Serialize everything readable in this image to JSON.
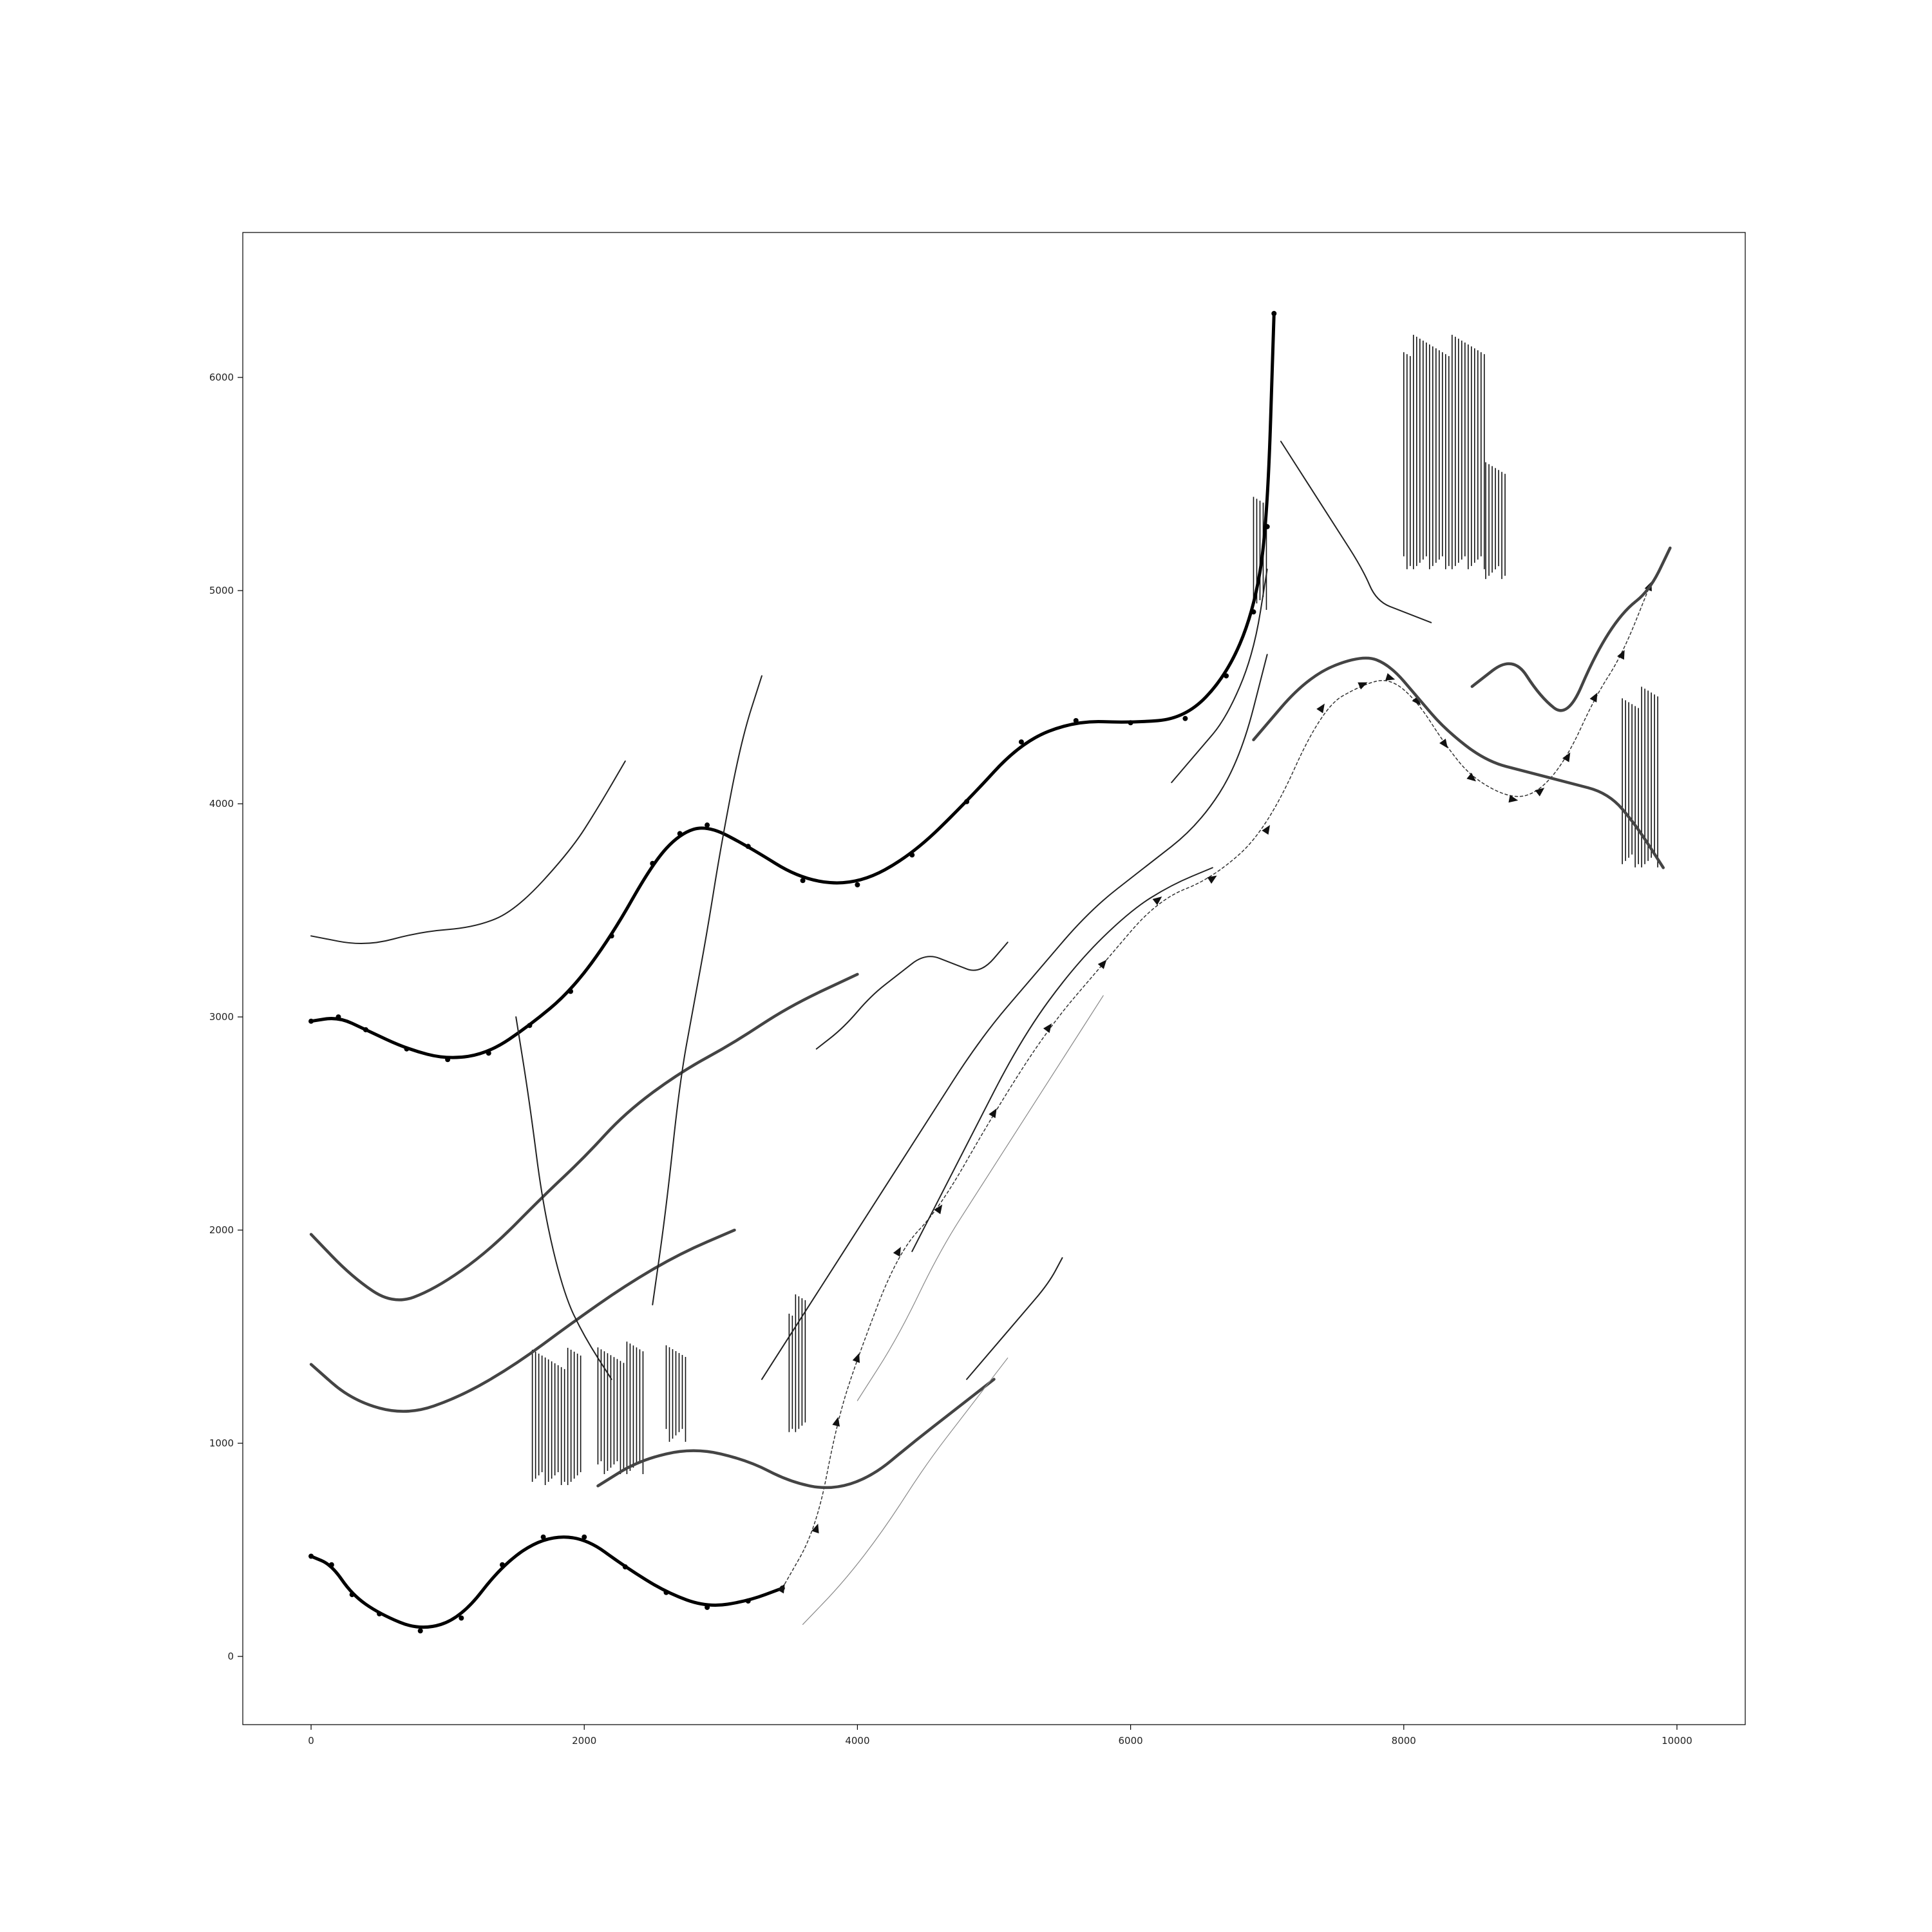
{
  "chart_data": {
    "type": "line",
    "title": "",
    "xlabel": "",
    "ylabel": "",
    "xlim": [
      -500,
      10500
    ],
    "ylim": [
      -320,
      6680
    ],
    "xticks": [
      0,
      2000,
      4000,
      6000,
      8000,
      10000
    ],
    "yticks": [
      0,
      1000,
      2000,
      3000,
      4000,
      5000,
      6000
    ],
    "xtick_labels": [
      "0",
      "2000",
      "4000",
      "6000",
      "8000",
      "10000"
    ],
    "ytick_labels": [
      "0",
      "1000",
      "2000",
      "3000",
      "4000",
      "5000",
      "6000"
    ],
    "grid": false,
    "legend": "none",
    "color": "#000000",
    "series": [
      {
        "style": "thick-dark",
        "x": [
          0,
          200,
          400,
          700,
          1000,
          1300,
          1600,
          1900,
          2200,
          2500,
          2700,
          2900,
          3200,
          3600,
          4000,
          4400,
          4800,
          5200,
          5600,
          6000,
          6400,
          6700,
          6900,
          7000,
          7050
        ],
        "y": [
          2980,
          3000,
          2940,
          2850,
          2800,
          2830,
          2960,
          3120,
          3380,
          3720,
          3860,
          3900,
          3800,
          3640,
          3620,
          3760,
          4010,
          4290,
          4390,
          4380,
          4400,
          4600,
          4900,
          5300,
          6300
        ]
      },
      {
        "style": "thick-dark",
        "x": [
          0,
          150,
          300,
          500,
          800,
          1100,
          1400,
          1700,
          2000,
          2300,
          2600,
          2900,
          3200,
          3450
        ],
        "y": [
          470,
          430,
          290,
          200,
          120,
          180,
          430,
          560,
          560,
          420,
          300,
          230,
          260,
          320
        ]
      },
      {
        "style": "triangle-markers",
        "x": [
          3450,
          3700,
          3850,
          4000,
          4300,
          4600,
          5000,
          5400,
          5800,
          6200,
          6600,
          7000,
          7400,
          7700,
          7900,
          8100,
          8300,
          8500,
          8800,
          9000,
          9200,
          9400,
          9600,
          9800
        ],
        "y": [
          320,
          600,
          1100,
          1400,
          1900,
          2100,
          2550,
          2950,
          3250,
          3550,
          3650,
          3880,
          4450,
          4560,
          4590,
          4480,
          4280,
          4120,
          4020,
          4060,
          4220,
          4500,
          4700,
          5020
        ]
      },
      {
        "style": "medium",
        "x": [
          0,
          400,
          800,
          1200,
          1500,
          1900,
          2100,
          2300
        ],
        "y": [
          3380,
          3330,
          3400,
          3420,
          3500,
          3780,
          3980,
          4200
        ]
      },
      {
        "style": "thick-gray",
        "x": [
          0,
          300,
          600,
          900,
          1300,
          1700,
          2000,
          2300,
          2700,
          3100,
          3500,
          4000
        ],
        "y": [
          1980,
          1780,
          1650,
          1720,
          1900,
          2160,
          2340,
          2550,
          2740,
          2880,
          3050,
          3200
        ]
      },
      {
        "style": "thick-gray",
        "x": [
          0,
          300,
          700,
          1100,
          1500,
          1900,
          2300,
          2700,
          3100
        ],
        "y": [
          1370,
          1200,
          1130,
          1220,
          1370,
          1560,
          1740,
          1890,
          2000
        ]
      },
      {
        "style": "thick-gray",
        "x": [
          2100,
          2400,
          2800,
          3200,
          3500,
          3800,
          4100,
          4400,
          4700,
          5000
        ],
        "y": [
          800,
          920,
          980,
          920,
          820,
          780,
          840,
          1000,
          1150,
          1300
        ]
      },
      {
        "style": "medium",
        "x": [
          3300,
          3700,
          4100,
          4500,
          4900,
          5300,
          5700,
          6100,
          6500,
          6800,
          7000
        ],
        "y": [
          1300,
          1700,
          2100,
          2500,
          2900,
          3200,
          3500,
          3700,
          3900,
          4200,
          4700
        ]
      },
      {
        "style": "medium",
        "x": [
          4400,
          4800,
          5200,
          5600,
          6000,
          6300,
          6600
        ],
        "y": [
          1900,
          2400,
          2900,
          3250,
          3500,
          3620,
          3700
        ]
      },
      {
        "style": "thick-gray",
        "x": [
          6900,
          7300,
          7700,
          7900,
          8100,
          8300,
          8600,
          8900,
          9200,
          9500,
          9700,
          9900
        ],
        "y": [
          4300,
          4600,
          4700,
          4650,
          4500,
          4350,
          4200,
          4150,
          4100,
          4050,
          3900,
          3700
        ]
      },
      {
        "style": "thick-gray",
        "x": [
          8500,
          8800,
          9000,
          9200,
          9400,
          9600,
          9800,
          9950
        ],
        "y": [
          4550,
          4700,
          4500,
          4400,
          4700,
          4900,
          5000,
          5200
        ]
      },
      {
        "style": "medium",
        "x": [
          7100,
          7300,
          7500,
          7700,
          7800,
          8000,
          8200
        ],
        "y": [
          5700,
          5500,
          5300,
          5100,
          4950,
          4900,
          4850
        ]
      },
      {
        "style": "medium",
        "x": [
          2500,
          2600,
          2700,
          2800,
          2900,
          3000,
          3150,
          3300
        ],
        "y": [
          1650,
          2100,
          2700,
          3050,
          3400,
          3800,
          4300,
          4600
        ]
      },
      {
        "style": "medium",
        "x": [
          1500,
          1600,
          1700,
          1850,
          2000,
          2200
        ],
        "y": [
          3000,
          2600,
          2100,
          1700,
          1500,
          1300
        ]
      },
      {
        "style": "medium",
        "x": [
          4800,
          5000,
          5200,
          5400,
          5500
        ],
        "y": [
          1300,
          1450,
          1600,
          1750,
          1870
        ]
      },
      {
        "style": "thin-gray",
        "x": [
          3600,
          3900,
          4200,
          4500,
          4800,
          5100
        ],
        "y": [
          150,
          350,
          600,
          900,
          1150,
          1400
        ]
      },
      {
        "style": "thin-gray",
        "x": [
          4000,
          4300,
          4600,
          4900,
          5200,
          5500,
          5800
        ],
        "y": [
          1200,
          1500,
          1900,
          2200,
          2500,
          2800,
          3100
        ]
      },
      {
        "style": "medium",
        "x": [
          6300,
          6500,
          6700,
          6900,
          7000
        ],
        "y": [
          4100,
          4250,
          4400,
          4700,
          5100
        ]
      },
      {
        "style": "medium",
        "x": [
          3700,
          3900,
          4100,
          4300,
          4500,
          4700,
          4900,
          5100
        ],
        "y": [
          2850,
          2950,
          3100,
          3200,
          3300,
          3250,
          3200,
          3350
        ]
      }
    ],
    "hatched_blocks": [
      {
        "x": [
          1620,
          1980
        ],
        "y": [
          800,
          1450
        ]
      },
      {
        "x": [
          2100,
          2450
        ],
        "y": [
          850,
          1480
        ]
      },
      {
        "x": [
          2600,
          2760
        ],
        "y": [
          1000,
          1500
        ]
      },
      {
        "x": [
          3500,
          3640
        ],
        "y": [
          1050,
          1700
        ]
      },
      {
        "x": [
          8000,
          8600
        ],
        "y": [
          5100,
          6200
        ]
      },
      {
        "x": [
          8600,
          8760
        ],
        "y": [
          5050,
          5650
        ]
      },
      {
        "x": [
          9600,
          9860
        ],
        "y": [
          3700,
          4550
        ]
      },
      {
        "x": [
          6900,
          7000
        ],
        "y": [
          4900,
          5500
        ]
      }
    ]
  }
}
